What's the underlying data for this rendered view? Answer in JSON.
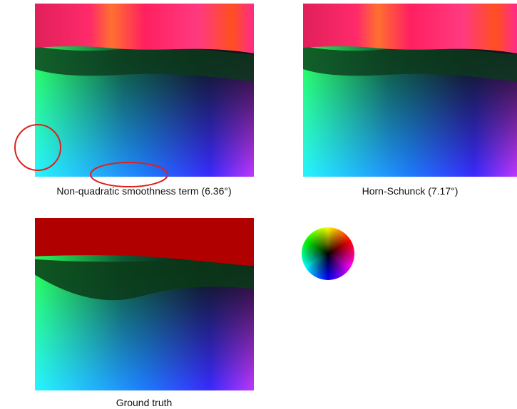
{
  "figure": {
    "panels": [
      {
        "caption": "Non-quadratic smoothness term (6.36°)"
      },
      {
        "caption": "Horn-Schunck (7.17°)"
      },
      {
        "caption": "Ground truth"
      }
    ]
  }
}
